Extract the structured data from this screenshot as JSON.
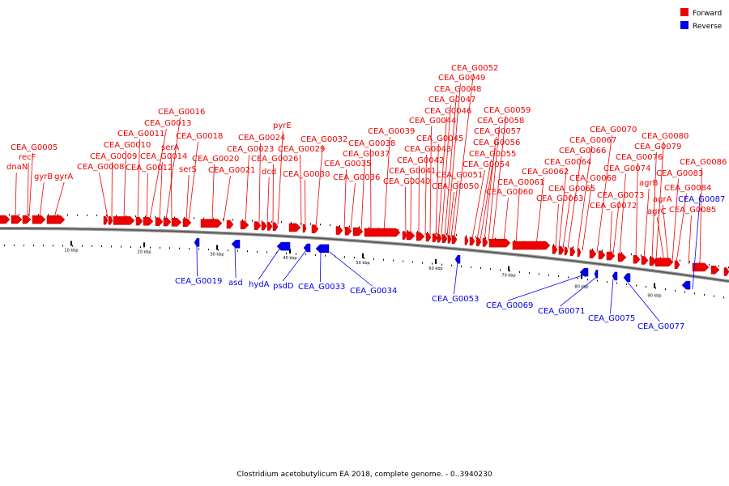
{
  "legend": {
    "forward": {
      "label": "Forward",
      "color": "#ee0000"
    },
    "reverse": {
      "label": "Reverse",
      "color": "#0000ee"
    }
  },
  "caption": "Clostridium acetobutylicum EA 2018, complete genome. - 0..3940230",
  "axis": {
    "ticks": [
      "10 kbp",
      "20 kbp",
      "30 kbp",
      "40 kbp",
      "50 kbp",
      "60 kbp",
      "70 kbp",
      "80 kbp",
      "90 kbp"
    ]
  },
  "genes": {
    "forward": [
      "dnaN",
      "CEA_G0005",
      "recF",
      "gyrB",
      "gyrA",
      "CEA_G0008",
      "CEA_G0009",
      "CEA_G0010",
      "CEA_G0011",
      "CEA_G0012",
      "CEA_G0013",
      "CEA_G0014",
      "CEA_G0016",
      "serA",
      "serS",
      "CEA_G0018",
      "CEA_G0020",
      "CEA_G0021",
      "CEA_G0023",
      "CEA_G0024",
      "pyrE",
      "dcd",
      "CEA_G0026",
      "CEA_G0029",
      "CEA_G0030",
      "CEA_G0032",
      "CEA_G0035",
      "CEA_G0036",
      "CEA_G0037",
      "CEA_G0038",
      "CEA_G0039",
      "CEA_G0040",
      "CEA_G0041",
      "CEA_G0042",
      "CEA_G0043",
      "CEA_G0044",
      "CEA_G0045",
      "CEA_G0046",
      "CEA_G0047",
      "CEA_G0048",
      "CEA_G0049",
      "CEA_G0050",
      "CEA_G0051",
      "CEA_G0052",
      "CEA_G0054",
      "CEA_G0055",
      "CEA_G0056",
      "CEA_G0057",
      "CEA_G0058",
      "CEA_G0059",
      "CEA_G0060",
      "CEA_G0061",
      "CEA_G0062",
      "CEA_G0063",
      "CEA_G0064",
      "CEA_G0065",
      "CEA_G0066",
      "CEA_G0067",
      "CEA_G0068",
      "CEA_G0070",
      "CEA_G0072",
      "CEA_G0073",
      "CEA_G0074",
      "CEA_G0076",
      "agrB",
      "CEA_G0079",
      "CEA_G0080",
      "agrC",
      "agrA",
      "CEA_G0083",
      "CEA_G0084",
      "CEA_G0085",
      "CEA_G0086"
    ],
    "reverse": [
      "CEA_G0019",
      "asd",
      "hydA",
      "psdD",
      "CEA_G0033",
      "CEA_G0034",
      "CEA_G0053",
      "CEA_G0069",
      "CEA_G0071",
      "CEA_G0075",
      "CEA_G0077",
      "CEA_G0087"
    ]
  }
}
